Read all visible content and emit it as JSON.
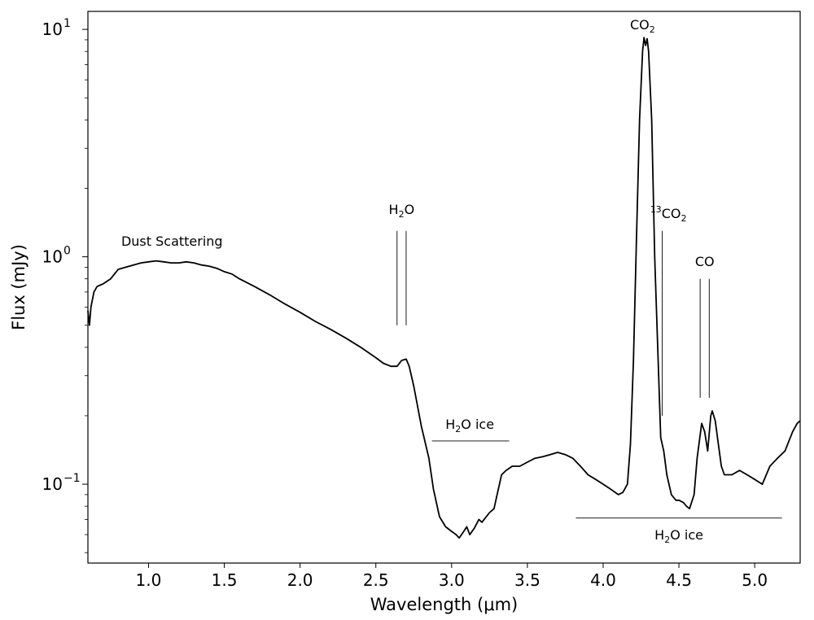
{
  "chart_data": {
    "type": "line",
    "scale": {
      "x": "linear",
      "y": "log"
    },
    "xlim": [
      0.6,
      5.3
    ],
    "ylim": [
      0.045,
      12
    ],
    "xlabel": "Wavelength (μm)",
    "ylabel": "Flux (mJy)",
    "x_ticks": [
      1.0,
      1.5,
      2.0,
      2.5,
      3.0,
      3.5,
      4.0,
      4.5,
      5.0
    ],
    "x_tick_labels": [
      "1.0",
      "1.5",
      "2.0",
      "2.5",
      "3.0",
      "3.5",
      "4.0",
      "4.5",
      "5.0"
    ],
    "y_ticks": [
      0.1,
      1,
      10
    ],
    "y_tick_labels": [
      "10",
      "10",
      "10"
    ],
    "y_tick_exponents": [
      "−1",
      "0",
      "1"
    ],
    "grid": false,
    "series": [
      {
        "x": [
          0.6,
          0.61,
          0.62,
          0.64,
          0.66,
          0.68,
          0.7,
          0.75,
          0.8,
          0.85,
          0.9,
          0.95,
          1.0,
          1.05,
          1.1,
          1.15,
          1.2,
          1.25,
          1.3,
          1.35,
          1.4,
          1.45,
          1.5,
          1.55,
          1.6,
          1.7,
          1.8,
          1.9,
          2.0,
          2.1,
          2.2,
          2.3,
          2.4,
          2.5,
          2.55,
          2.6,
          2.64,
          2.67,
          2.7,
          2.72,
          2.75,
          2.8,
          2.85,
          2.88,
          2.92,
          2.96,
          3.0,
          3.03,
          3.05,
          3.08,
          3.1,
          3.12,
          3.15,
          3.18,
          3.2,
          3.25,
          3.28,
          3.3,
          3.33,
          3.36,
          3.4,
          3.45,
          3.5,
          3.55,
          3.6,
          3.65,
          3.7,
          3.75,
          3.8,
          3.85,
          3.9,
          3.95,
          4.0,
          4.05,
          4.1,
          4.13,
          4.16,
          4.18,
          4.2,
          4.22,
          4.24,
          4.26,
          4.27,
          4.28,
          4.29,
          4.3,
          4.32,
          4.34,
          4.36,
          4.38,
          4.4,
          4.42,
          4.45,
          4.48,
          4.5,
          4.53,
          4.55,
          4.57,
          4.6,
          4.62,
          4.65,
          4.67,
          4.69,
          4.71,
          4.72,
          4.74,
          4.76,
          4.78,
          4.8,
          4.85,
          4.9,
          4.95,
          5.0,
          5.05,
          5.1,
          5.15,
          5.2,
          5.25,
          5.28,
          5.3
        ],
        "y": [
          0.58,
          0.5,
          0.6,
          0.7,
          0.74,
          0.75,
          0.76,
          0.8,
          0.88,
          0.9,
          0.92,
          0.94,
          0.95,
          0.96,
          0.95,
          0.94,
          0.94,
          0.95,
          0.94,
          0.92,
          0.91,
          0.89,
          0.86,
          0.84,
          0.8,
          0.74,
          0.68,
          0.62,
          0.57,
          0.52,
          0.48,
          0.44,
          0.4,
          0.36,
          0.34,
          0.33,
          0.33,
          0.35,
          0.355,
          0.33,
          0.27,
          0.18,
          0.13,
          0.095,
          0.072,
          0.065,
          0.062,
          0.06,
          0.058,
          0.062,
          0.065,
          0.06,
          0.064,
          0.07,
          0.068,
          0.075,
          0.078,
          0.09,
          0.11,
          0.115,
          0.12,
          0.12,
          0.125,
          0.13,
          0.132,
          0.135,
          0.138,
          0.135,
          0.13,
          0.12,
          0.11,
          0.105,
          0.1,
          0.095,
          0.09,
          0.092,
          0.1,
          0.15,
          0.35,
          1.2,
          4.0,
          8.0,
          9.2,
          8.5,
          9.1,
          8.0,
          4.0,
          1.0,
          0.4,
          0.16,
          0.14,
          0.11,
          0.09,
          0.085,
          0.085,
          0.083,
          0.08,
          0.078,
          0.09,
          0.13,
          0.185,
          0.17,
          0.14,
          0.2,
          0.21,
          0.19,
          0.15,
          0.12,
          0.11,
          0.11,
          0.115,
          0.11,
          0.105,
          0.1,
          0.12,
          0.13,
          0.14,
          0.17,
          0.185,
          0.19
        ]
      }
    ],
    "annotations": {
      "dust": {
        "text": "Dust Scattering"
      },
      "h2o": {
        "main": "H",
        "sub": "2",
        "tail": "O",
        "lines_x": [
          2.64,
          2.7
        ],
        "y_range": [
          0.5,
          1.3
        ]
      },
      "h2o_ice_1": {
        "main": "H",
        "sub": "2",
        "tail": "O ice",
        "x_range": [
          2.87,
          3.38
        ],
        "y": 0.155
      },
      "h2o_ice_2": {
        "main": "H",
        "sub": "2",
        "tail": "O ice",
        "x_range": [
          3.82,
          5.18
        ],
        "y": 0.071
      },
      "co2": {
        "main": "CO",
        "sub": "2"
      },
      "13co2": {
        "sup": "13",
        "main": "CO",
        "sub": "2",
        "line_x": 4.39,
        "y_range": [
          0.2,
          1.3
        ]
      },
      "co": {
        "text": "CO",
        "lines_x": [
          4.64,
          4.7
        ],
        "y_range": [
          0.24,
          0.8
        ]
      }
    }
  }
}
